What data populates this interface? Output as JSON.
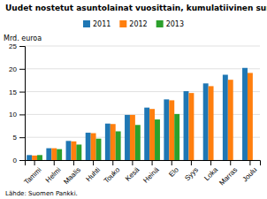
{
  "chart_data": {
    "type": "bar",
    "title": "Uudet nostetut asuntolainat vuosittain, kumulatiivinen summa",
    "y_label": "Mrd. euroa",
    "annotations": [
      "Lähde: Suomen Pankki."
    ],
    "categories": [
      "Tammi",
      "Helmi",
      "Maalis",
      "Huhti",
      "Touko",
      "Kesä",
      "Heinä",
      "Elo",
      "Syys",
      "Loka",
      "Marras",
      "Joulu"
    ],
    "series": [
      {
        "name": "2011",
        "values": [
          1.1,
          2.6,
          4.2,
          6.0,
          8.0,
          9.9,
          11.5,
          13.3,
          15.1,
          16.8,
          18.7,
          20.2
        ]
      },
      {
        "name": "2012",
        "values": [
          1.0,
          2.6,
          4.1,
          5.9,
          7.9,
          9.9,
          11.2,
          13.1,
          14.7,
          16.2,
          17.6,
          19.1
        ]
      },
      {
        "name": "2013",
        "values": [
          1.1,
          2.4,
          3.4,
          4.7,
          6.3,
          7.7,
          8.9,
          10.1,
          null,
          null,
          null,
          null
        ]
      }
    ],
    "ylim": [
      0,
      25
    ],
    "yticks": [
      0,
      5,
      10,
      15,
      20,
      25
    ],
    "grid": true,
    "legend": "top"
  }
}
